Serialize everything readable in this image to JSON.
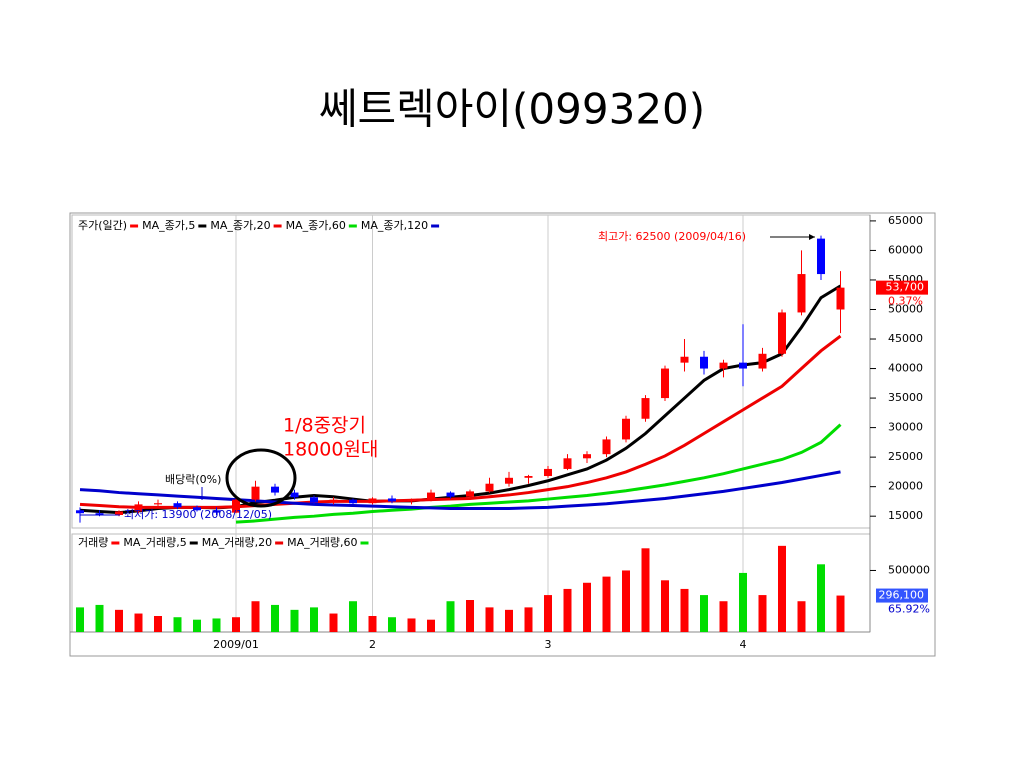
{
  "chart_data": [
    {
      "type": "candlestick",
      "title": "쎄트렉아이(099320)",
      "legend_title": "주가(일간)",
      "legend_title_color": "#ff0000",
      "x": [
        null,
        null,
        null,
        null,
        null,
        null,
        null,
        null,
        "2009/01",
        null,
        null,
        null,
        null,
        null,
        null,
        "2",
        null,
        null,
        null,
        null,
        null,
        null,
        null,
        null,
        "3",
        null,
        null,
        null,
        null,
        null,
        null,
        null,
        null,
        null,
        "4",
        null,
        null,
        null,
        null,
        null
      ],
      "open": [
        16000,
        15500,
        15200,
        15800,
        17000,
        17200,
        16500,
        16000,
        15600,
        17800,
        20000,
        19000,
        18200,
        17300,
        17800,
        17200,
        18000,
        17500,
        17800,
        19000,
        18300,
        19200,
        20500,
        21500,
        21800,
        23000,
        24800,
        25500,
        28000,
        31500,
        35000,
        41000,
        42000,
        40000,
        41000,
        40000,
        42500,
        49500,
        62000,
        50000
      ],
      "high": [
        16500,
        16000,
        16000,
        17500,
        17800,
        17500,
        16800,
        16500,
        18000,
        21000,
        20500,
        19500,
        18500,
        18200,
        18000,
        18200,
        18500,
        18000,
        19500,
        19200,
        19500,
        21500,
        22500,
        22000,
        23500,
        25500,
        26000,
        28500,
        32000,
        35500,
        40500,
        45000,
        43000,
        41500,
        47500,
        43500,
        50000,
        60000,
        62500,
        56500
      ],
      "low": [
        13900,
        15000,
        15000,
        15500,
        16500,
        16200,
        15800,
        15200,
        15500,
        17500,
        18500,
        17800,
        17000,
        17000,
        17000,
        17000,
        17200,
        17000,
        17500,
        18000,
        18000,
        19000,
        20000,
        20500,
        21500,
        22800,
        24000,
        25000,
        27500,
        31000,
        34500,
        39500,
        39000,
        38500,
        37000,
        39500,
        42000,
        49000,
        55000,
        46000
      ],
      "close": [
        15500,
        15200,
        15800,
        17000,
        17200,
        16500,
        16000,
        15600,
        17800,
        20000,
        19000,
        18200,
        17300,
        17800,
        17200,
        18000,
        17500,
        17800,
        19000,
        18300,
        19200,
        20500,
        21500,
        21800,
        23000,
        24800,
        25500,
        28000,
        31500,
        35000,
        40000,
        42000,
        40000,
        41000,
        40000,
        42500,
        49500,
        56000,
        56000,
        53700
      ],
      "up_color": "#ff0000",
      "down_color": "#0000ff",
      "series": [
        {
          "name": "MA_종가,5",
          "color": "#000000",
          "values": [
            16000,
            15800,
            15600,
            15900,
            16300,
            16500,
            16500,
            16400,
            16600,
            17300,
            17700,
            18200,
            18500,
            18300,
            17900,
            17500,
            17600,
            17600,
            17900,
            18200,
            18500,
            18900,
            19500,
            20200,
            21000,
            22000,
            23000,
            24500,
            26500,
            29000,
            32000,
            35000,
            38000,
            40000,
            40600,
            41000,
            42500,
            47000,
            52000,
            54000
          ]
        },
        {
          "name": "MA_종가,20",
          "color": "#ee0000",
          "values": [
            17000,
            16800,
            16600,
            16500,
            16500,
            16500,
            16500,
            16500,
            16600,
            16800,
            17000,
            17200,
            17400,
            17500,
            17500,
            17500,
            17600,
            17700,
            17800,
            17900,
            18000,
            18300,
            18600,
            19000,
            19500,
            20000,
            20700,
            21500,
            22500,
            23800,
            25200,
            27000,
            29000,
            31000,
            33000,
            35000,
            37000,
            40000,
            43000,
            45500
          ]
        },
        {
          "name": "MA_종가,60",
          "color": "#00dd00",
          "values": [
            null,
            null,
            null,
            null,
            null,
            null,
            null,
            null,
            14000,
            14200,
            14500,
            14800,
            15000,
            15300,
            15500,
            15800,
            16000,
            16200,
            16500,
            16700,
            17000,
            17200,
            17400,
            17600,
            17900,
            18200,
            18500,
            18900,
            19300,
            19800,
            20300,
            20900,
            21500,
            22200,
            23000,
            23800,
            24600,
            25800,
            27500,
            30500
          ]
        },
        {
          "name": "MA_종가,120",
          "color": "#0000cc",
          "values": [
            19500,
            19300,
            19000,
            18800,
            18600,
            18400,
            18200,
            18000,
            17800,
            17600,
            17400,
            17200,
            17000,
            16900,
            16800,
            16700,
            16600,
            16500,
            16400,
            16300,
            16300,
            16300,
            16300,
            16400,
            16500,
            16700,
            16900,
            17100,
            17400,
            17700,
            18000,
            18400,
            18800,
            19200,
            19700,
            20200,
            20700,
            21300,
            21900,
            22500
          ]
        }
      ],
      "ylim": [
        13000,
        66000
      ],
      "yticks": [
        15000,
        20000,
        25000,
        30000,
        35000,
        40000,
        45000,
        50000,
        55000,
        60000,
        65000
      ],
      "last_value": 53700,
      "last_label": "53,700",
      "last_change": "0.37%",
      "annotations": {
        "high": "최고가: 62500 (2009/04/16)",
        "low": "최저가: 13900 (2008/12/05)",
        "dividend": "배당락(0%)",
        "note": [
          "1/8중장기",
          "18000원대"
        ]
      }
    },
    {
      "type": "bar",
      "legend_title": "거래량",
      "legend_title_color": "#ff0000",
      "legend": [
        {
          "name": "MA_거래량,5",
          "color": "#000000"
        },
        {
          "name": "MA_거래량,20",
          "color": "#ee0000"
        },
        {
          "name": "MA_거래량,60",
          "color": "#00dd00"
        }
      ],
      "values": [
        200000,
        220000,
        180000,
        150000,
        130000,
        120000,
        100000,
        110000,
        120000,
        250000,
        220000,
        180000,
        200000,
        150000,
        250000,
        130000,
        120000,
        110000,
        100000,
        250000,
        260000,
        200000,
        180000,
        200000,
        300000,
        350000,
        400000,
        450000,
        500000,
        680000,
        420000,
        350000,
        300000,
        250000,
        480000,
        300000,
        700000,
        250000,
        550000,
        296100
      ],
      "up_color": "#ff0000",
      "down_color": "#00dd00",
      "ylim": [
        0,
        780000
      ],
      "yticks": [
        500000
      ],
      "last_value": 296100,
      "last_label": "296,100",
      "last_change": "65.92%"
    }
  ]
}
